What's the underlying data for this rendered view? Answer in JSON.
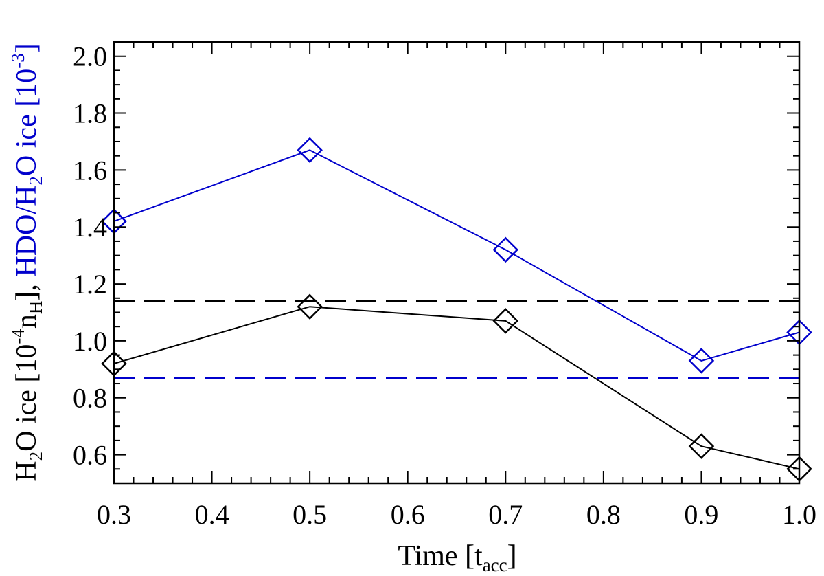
{
  "chart_data": {
    "type": "line",
    "xlabel": {
      "main": "Time [t",
      "sub": "acc",
      "close": "]"
    },
    "ylabel": {
      "black": {
        "p1": "H",
        "sub1": "2",
        "p2": "O ice [10",
        "sup1": "-4",
        "p3": "n",
        "sub2": "H",
        "p4": "], "
      },
      "blue": {
        "p1": "HDO/H",
        "sub1": "2",
        "p2": "O ice [10",
        "sup1": "-3",
        "p3": "]"
      }
    },
    "xlim": [
      0.3,
      1.0
    ],
    "ylim": [
      0.5,
      2.05
    ],
    "xticks": [
      "0.3",
      "0.4",
      "0.5",
      "0.6",
      "0.7",
      "0.8",
      "0.9",
      "1.0"
    ],
    "yticks": [
      "0.6",
      "0.8",
      "1.0",
      "1.2",
      "1.4",
      "1.6",
      "1.8",
      "2.0"
    ],
    "series": [
      {
        "color": "#000000",
        "marker": "diamond",
        "x": [
          0.3,
          0.5,
          0.7,
          0.9,
          1.0
        ],
        "y": [
          0.92,
          1.12,
          1.07,
          0.63,
          0.55
        ]
      },
      {
        "color": "#0000cc",
        "marker": "diamond",
        "x": [
          0.3,
          0.5,
          0.7,
          0.9,
          1.0
        ],
        "y": [
          1.42,
          1.67,
          1.32,
          0.93,
          1.03
        ]
      }
    ],
    "reference_lines": [
      {
        "color": "#000000",
        "style": "dashed",
        "y": 1.14
      },
      {
        "color": "#0000cc",
        "style": "dashed",
        "y": 0.87
      }
    ]
  }
}
